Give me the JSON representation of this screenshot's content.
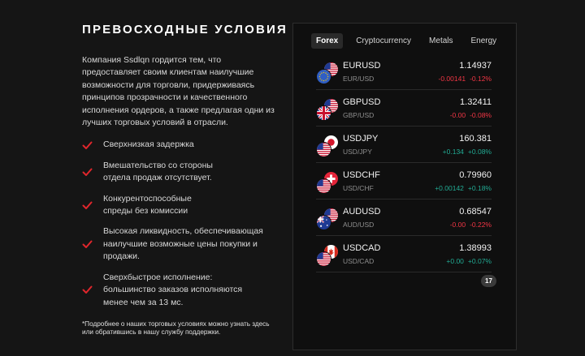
{
  "title": "ПРЕВОСХОДНЫЕ УСЛОВИЯ",
  "intro": "Компания Ssdlqn гордится тем, что предоставляет своим клиентам наилучшие возможности для торговли, придерживаясь принципов прозрачности и качественного исполнения ордеров, а также предлагая одни из лучших торговых условий в отрасли.",
  "features": [
    "Сверхнизкая задержка",
    "Вмешательство со стороны отдела продаж отсутствует.",
    "Конкурентоспособные спреды без комиссии",
    "Высокая ликвидность, обеспечивающая наилучшие возможные цены покупки и продажи.",
    "Сверхбыстрое исполнение: большинство заказов исполняются менее чем за 13 мс."
  ],
  "note": "*Подробнее о наших торговых условиях можно узнать здесь или обратившись в нашу службу поддержки.",
  "colors": {
    "accent_check": "#e0262c",
    "negative": "#f23645",
    "positive": "#22ab94"
  },
  "widget": {
    "tabs": [
      "Forex",
      "Cryptocurrency",
      "Metals",
      "Energy"
    ],
    "active_tab": "Forex",
    "rows": [
      {
        "symbol": "EURUSD",
        "name": "EUR/USD",
        "price": "1.14937",
        "change": "-0.00141",
        "percent": "-0.12%",
        "dir": "neg",
        "flags": [
          "us-flag-icon",
          "eu-flag-icon"
        ]
      },
      {
        "symbol": "GBPUSD",
        "name": "GBP/USD",
        "price": "1.32411",
        "change": "-0.00",
        "percent": "-0.08%",
        "dir": "neg",
        "flags": [
          "us-flag-icon",
          "uk-flag-icon"
        ]
      },
      {
        "symbol": "USDJPY",
        "name": "USD/JPY",
        "price": "160.381",
        "change": "+0.134",
        "percent": "+0.08%",
        "dir": "pos",
        "flags": [
          "jp-flag-icon",
          "us-flag-icon"
        ]
      },
      {
        "symbol": "USDCHF",
        "name": "USD/CHF",
        "price": "0.79960",
        "change": "+0.00142",
        "percent": "+0.18%",
        "dir": "pos",
        "flags": [
          "ch-flag-icon",
          "us-flag-icon"
        ]
      },
      {
        "symbol": "AUDUSD",
        "name": "AUD/USD",
        "price": "0.68547",
        "change": "-0.00",
        "percent": "-0.22%",
        "dir": "neg",
        "flags": [
          "us-flag-icon",
          "au-flag-icon"
        ]
      },
      {
        "symbol": "USDCAD",
        "name": "USD/CAD",
        "price": "1.38993",
        "change": "+0.00",
        "percent": "+0.07%",
        "dir": "pos",
        "flags": [
          "ca-flag-icon",
          "us-flag-icon"
        ]
      }
    ],
    "logo_icon": "tradingview-logo-icon"
  }
}
